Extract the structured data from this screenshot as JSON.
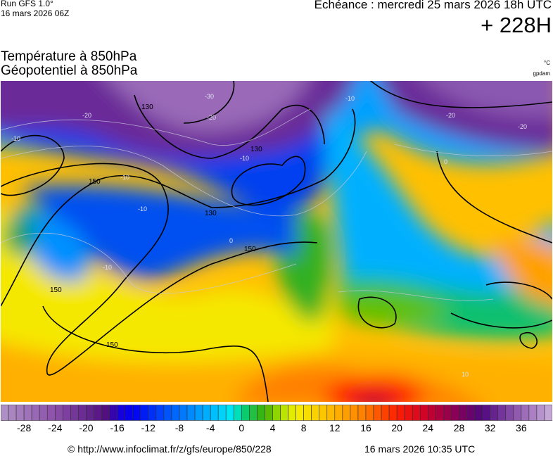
{
  "header": {
    "run_line1": "Run GFS 1.0°",
    "run_line2": "16 mars 2026 06Z",
    "echeance": "Echéance : mercredi 25 mars 2026 18h UTC",
    "lead_time": "+ 228H",
    "title_temperature": "Température à 850hPa",
    "title_geopotential": "Géopotentiel à 850hPa",
    "unit_temperature": "°C",
    "unit_geopotential": "gpdam"
  },
  "map": {
    "geopotential_labels": [
      "150",
      "150",
      "150",
      "150",
      "130",
      "130",
      "130"
    ],
    "temperature_labels": [
      "-30",
      "-20",
      "-20",
      "-20",
      "-20",
      "-10",
      "-10",
      "-10",
      "-10",
      "-10",
      "-10",
      "0",
      "0",
      "10"
    ]
  },
  "colorbar": {
    "min": -31,
    "max": 40,
    "step": 1,
    "tick_labels": [
      "-28",
      "-24",
      "-20",
      "-16",
      "-12",
      "-8",
      "-4",
      "0",
      "4",
      "8",
      "12",
      "16",
      "20",
      "24",
      "28",
      "32",
      "36"
    ],
    "color_anchors": [
      [
        -31,
        "#b295c8"
      ],
      [
        -24,
        "#8b4fa9"
      ],
      [
        -17,
        "#4c0a7d"
      ],
      [
        -16,
        "#1e00d8"
      ],
      [
        -14,
        "#0000f0"
      ],
      [
        -8,
        "#0070ff"
      ],
      [
        -3,
        "#00c8ff"
      ],
      [
        -1,
        "#00eef0"
      ],
      [
        0,
        "#00d084"
      ],
      [
        3,
        "#40b000"
      ],
      [
        5,
        "#a8e000"
      ],
      [
        7,
        "#f5f000"
      ],
      [
        12,
        "#ffb400"
      ],
      [
        16,
        "#ff7a00"
      ],
      [
        20,
        "#ff1e00"
      ],
      [
        24,
        "#c8002c"
      ],
      [
        28,
        "#80005c"
      ],
      [
        31,
        "#500880"
      ],
      [
        35,
        "#8a50aa"
      ],
      [
        40,
        "#cab0dc"
      ]
    ]
  },
  "footer": {
    "copyright": "© http://www.infoclimat.fr/z/gfs/europe/850/228",
    "generated": "16 mars 2026 10:35 UTC"
  }
}
